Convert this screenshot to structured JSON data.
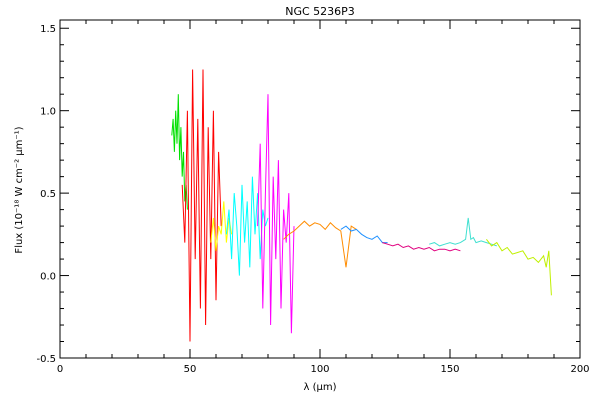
{
  "chart_data": {
    "type": "line",
    "title": "NGC 5236P3",
    "xlabel": "λ (μm)",
    "ylabel": "Flux (10⁻¹⁸ W cm⁻² μm⁻¹)",
    "xlim": [
      0,
      200
    ],
    "ylim": [
      -0.5,
      1.55
    ],
    "x_ticks": [
      0,
      50,
      100,
      150,
      200
    ],
    "x_tick_labels": [
      "0",
      "50",
      "100",
      "150",
      "200"
    ],
    "y_ticks": [
      -0.5,
      0.0,
      0.5,
      1.0,
      1.5
    ],
    "y_tick_labels": [
      "-0.5",
      "0.0",
      "0.5",
      "1.0",
      "1.5"
    ],
    "grid": false,
    "series": [
      {
        "color": "#00e000",
        "x": [
          43,
          43.5,
          44,
          44.5,
          45,
          45.5,
          46,
          46.5,
          47,
          47.5,
          48,
          48.5,
          49
        ],
        "y": [
          0.85,
          0.95,
          0.75,
          1.0,
          0.8,
          1.1,
          0.7,
          0.9,
          0.6,
          0.75,
          0.45,
          0.55,
          0.4
        ]
      },
      {
        "color": "#ff0000",
        "x": [
          47,
          48,
          49,
          50,
          51,
          52,
          53,
          54,
          55,
          56,
          57,
          58,
          59,
          60,
          61,
          62
        ],
        "y": [
          0.55,
          0.2,
          1.0,
          -0.4,
          1.25,
          0.1,
          0.95,
          -0.2,
          1.25,
          -0.3,
          0.9,
          0.1,
          1.0,
          -0.15,
          0.75,
          0.3
        ]
      },
      {
        "color": "#ffff00",
        "x": [
          58,
          59,
          60,
          61,
          62,
          63,
          64,
          65,
          66
        ],
        "y": [
          0.2,
          0.35,
          0.15,
          0.3,
          0.25,
          0.45,
          0.2,
          0.35,
          0.25
        ]
      },
      {
        "color": "#00ffff",
        "x": [
          64,
          65,
          66,
          67,
          68,
          69,
          70,
          71,
          72,
          73,
          74,
          75,
          76,
          77,
          78,
          79,
          80
        ],
        "y": [
          0.25,
          0.4,
          0.1,
          0.5,
          0.3,
          0.0,
          0.55,
          0.2,
          0.45,
          0.05,
          0.6,
          0.25,
          0.5,
          0.1,
          0.4,
          0.3,
          0.35
        ]
      },
      {
        "color": "#ff00ff",
        "x": [
          76,
          77,
          78,
          79,
          80,
          81,
          82,
          83,
          84,
          85,
          86,
          87,
          88,
          89,
          90
        ],
        "y": [
          0.3,
          0.8,
          -0.2,
          0.5,
          1.1,
          -0.3,
          0.6,
          0.1,
          0.7,
          -0.2,
          0.4,
          0.2,
          0.5,
          -0.35,
          0.3
        ]
      },
      {
        "color": "#ff8c00",
        "x": [
          86,
          88,
          90,
          92,
          94,
          96,
          98,
          100,
          102,
          104,
          106,
          108,
          110,
          112,
          114
        ],
        "y": [
          0.22,
          0.25,
          0.27,
          0.3,
          0.33,
          0.3,
          0.32,
          0.31,
          0.28,
          0.32,
          0.29,
          0.27,
          0.05,
          0.3,
          0.28
        ]
      },
      {
        "color": "#1e90ff",
        "x": [
          108,
          110,
          112,
          114,
          116,
          118,
          120,
          122,
          124,
          126
        ],
        "y": [
          0.28,
          0.3,
          0.27,
          0.28,
          0.25,
          0.23,
          0.22,
          0.24,
          0.2,
          0.2
        ]
      },
      {
        "color": "#e0007f",
        "x": [
          124,
          126,
          128,
          130,
          132,
          134,
          136,
          138,
          140,
          142,
          144,
          146,
          148,
          150,
          152,
          154
        ],
        "y": [
          0.2,
          0.19,
          0.18,
          0.19,
          0.17,
          0.18,
          0.16,
          0.17,
          0.16,
          0.17,
          0.15,
          0.16,
          0.16,
          0.15,
          0.16,
          0.15
        ]
      },
      {
        "color": "#40e0d0",
        "x": [
          142,
          144,
          146,
          148,
          150,
          152,
          154,
          156,
          157,
          158,
          159,
          160,
          162,
          164,
          166,
          168
        ],
        "y": [
          0.19,
          0.2,
          0.18,
          0.19,
          0.2,
          0.19,
          0.2,
          0.22,
          0.35,
          0.22,
          0.23,
          0.2,
          0.21,
          0.2,
          0.19,
          0.18
        ]
      },
      {
        "color": "#c0f000",
        "x": [
          164,
          166,
          168,
          170,
          172,
          174,
          176,
          178,
          180,
          182,
          184,
          186,
          187,
          188,
          189
        ],
        "y": [
          0.22,
          0.18,
          0.2,
          0.15,
          0.17,
          0.13,
          0.14,
          0.15,
          0.1,
          0.11,
          0.08,
          0.12,
          0.05,
          0.15,
          -0.12
        ]
      }
    ]
  }
}
